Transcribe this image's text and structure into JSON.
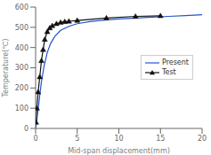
{
  "chart_data": {
    "type": "line",
    "xlabel": "Mid-span displacement(mm)",
    "ylabel": "Temperature(℃)",
    "xlim": [
      0,
      20
    ],
    "ylim": [
      0,
      600
    ],
    "xticks": [
      0,
      5,
      10,
      15,
      20
    ],
    "yticks": [
      0,
      100,
      200,
      300,
      400,
      500,
      600
    ],
    "grid": false,
    "legend": "right",
    "series": [
      {
        "name": "Present",
        "color": "#2255cc",
        "marker": "none",
        "line_style": "solid",
        "x": [
          0.0,
          0.05,
          0.1,
          0.2,
          0.35,
          0.5,
          0.7,
          1.0,
          1.4,
          1.8,
          2.3,
          3.0,
          4.0,
          5.0,
          6.5,
          8.0,
          10.0,
          12.0,
          14.0,
          16.0,
          18.0,
          20.0
        ],
        "values": [
          0,
          10,
          25,
          60,
          110,
          165,
          230,
          305,
          375,
          420,
          455,
          485,
          505,
          518,
          528,
          535,
          541,
          546,
          550,
          554,
          558,
          562
        ]
      },
      {
        "name": "Test",
        "color": "#111111",
        "marker": "triangle",
        "line_style": "solid",
        "x": [
          0.05,
          0.15,
          0.3,
          0.5,
          0.7,
          0.9,
          1.1,
          1.4,
          1.7,
          2.0,
          2.5,
          3.0,
          3.5,
          4.0,
          5.0,
          8.5,
          12.0,
          15.0
        ],
        "values": [
          30,
          100,
          180,
          255,
          335,
          390,
          440,
          478,
          497,
          508,
          518,
          524,
          528,
          530,
          534,
          546,
          554,
          557
        ]
      }
    ]
  }
}
